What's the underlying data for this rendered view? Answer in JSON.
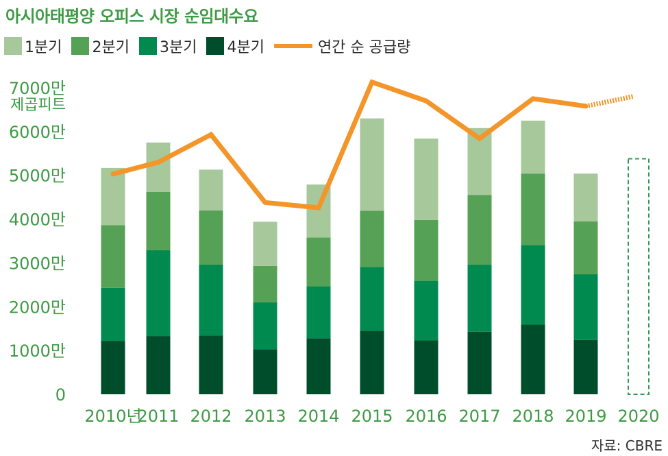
{
  "chart_data": {
    "type": "bar",
    "title": "아시아태평양 오피스 시장 순임대수요",
    "stacked": true,
    "categories": [
      "2010년",
      "2011",
      "2012",
      "2013",
      "2014",
      "2015",
      "2016",
      "2017",
      "2018",
      "2019",
      "2020"
    ],
    "y_tick_labels": [
      "0",
      "1000만",
      "2000만",
      "3000만",
      "4000만",
      "5000만",
      "6000만",
      "7000만"
    ],
    "y_ticks": [
      0,
      10000000,
      20000000,
      30000000,
      40000000,
      50000000,
      60000000,
      70000000
    ],
    "ylim": [
      0,
      72000000
    ],
    "y_unit": "제곱피트",
    "series": [
      {
        "name": "4분기",
        "color": "#004d2b",
        "values": [
          12200000,
          13300000,
          13400000,
          10300000,
          12800000,
          14500000,
          12300000,
          14300000,
          15900000,
          12400000,
          null
        ]
      },
      {
        "name": "3분기",
        "color": "#008a4f",
        "values": [
          12100000,
          19600000,
          16200000,
          10700000,
          11900000,
          14600000,
          13600000,
          15300000,
          18200000,
          15000000,
          null
        ]
      },
      {
        "name": "2분기",
        "color": "#55a156",
        "values": [
          14300000,
          13300000,
          12400000,
          8300000,
          11100000,
          12800000,
          13900000,
          15900000,
          16300000,
          12100000,
          null
        ]
      },
      {
        "name": "1분기",
        "color": "#a6c89b",
        "values": [
          13100000,
          11300000,
          9300000,
          10100000,
          12100000,
          21100000,
          18600000,
          15300000,
          12100000,
          10900000,
          null
        ]
      }
    ],
    "line_series": {
      "name": "연간 순 공급량",
      "color": "#f4952a",
      "values": [
        50300000,
        53000000,
        59300000,
        43800000,
        42600000,
        71300000,
        67000000,
        58400000,
        67500000,
        65800000,
        68000000
      ],
      "dashed_last_segment": true
    },
    "forecast_box": {
      "category": "2020",
      "value": 53800000,
      "color": "#2f9a4f"
    },
    "grid": false,
    "legend_position": "top-left"
  },
  "legend": {
    "q1": "1분기",
    "q2": "2분기",
    "q3": "3분기",
    "q4": "4분기",
    "line": "연간 순 공급량"
  },
  "source": "자료: CBRE"
}
